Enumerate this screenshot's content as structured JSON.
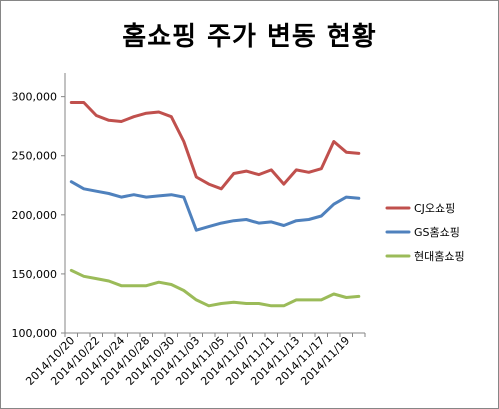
{
  "chart_data": {
    "type": "line",
    "title": "홈쇼핑 주가 변동 현황",
    "xlabel": "",
    "ylabel": "",
    "ylim": [
      100000,
      320000
    ],
    "y_ticks": [
      100000,
      150000,
      200000,
      250000,
      300000
    ],
    "y_tick_labels": [
      "100,000",
      "150,000",
      "200,000",
      "250,000",
      "300,000"
    ],
    "x_tick_labels": [
      "2014/10/20",
      "2014/10/22",
      "2014/10/24",
      "2014/10/28",
      "2014/10/30",
      "2014/11/03",
      "2014/11/05",
      "2014/11/07",
      "2014/11/11",
      "2014/11/13",
      "2014/11/17",
      "2014/11/19"
    ],
    "grid": false,
    "legend_position": "right",
    "series": [
      {
        "name": "CJ오쇼핑",
        "color": "#c0504d",
        "values": [
          295000,
          295000,
          284000,
          280000,
          279000,
          283000,
          286000,
          287000,
          283000,
          262000,
          232000,
          226000,
          222000,
          235000,
          237000,
          234000,
          238000,
          226000,
          238000,
          236000,
          239000,
          262000,
          253000,
          252000
        ]
      },
      {
        "name": "GS홈쇼핑",
        "color": "#4f81bd",
        "values": [
          228000,
          222000,
          220000,
          218000,
          215000,
          217000,
          215000,
          216000,
          217000,
          215000,
          187000,
          190000,
          193000,
          195000,
          196000,
          193000,
          194000,
          191000,
          195000,
          196000,
          199000,
          209000,
          215000,
          214000
        ]
      },
      {
        "name": "현대홈쇼핑",
        "color": "#9bbb59",
        "values": [
          153000,
          148000,
          146000,
          144000,
          140000,
          140000,
          140000,
          143000,
          141000,
          136000,
          128000,
          123000,
          125000,
          126000,
          125000,
          125000,
          123000,
          123000,
          128000,
          128000,
          128000,
          133000,
          130000,
          131000
        ]
      }
    ]
  }
}
